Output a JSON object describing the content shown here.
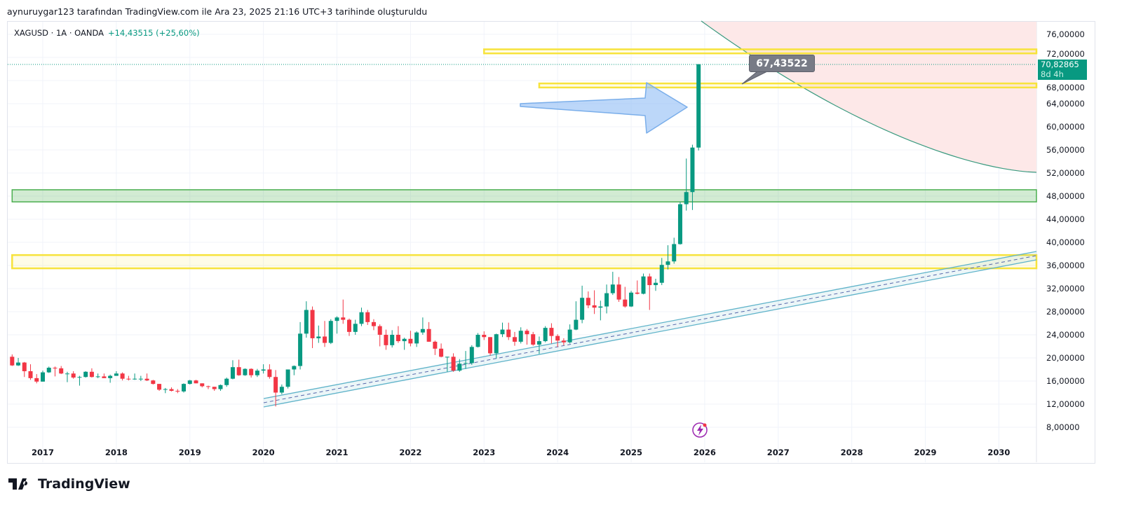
{
  "credit": "aynuruygar123 tarafından TradingView.com ile Ara 23, 2025 21:16 UTC+3 tarihinde oluşturuldu",
  "legend": {
    "symbol": "XAGUSD · 1A · OANDA",
    "change": "+14,43515 (+25,60%)"
  },
  "price_tag": {
    "price": "70,82865",
    "countdown": "8d 4h"
  },
  "callout": "67,43522",
  "logo": "TradingView",
  "colors": {
    "up": "#089981",
    "down": "#f23645",
    "zone_yellow": "#f7e33c",
    "zone_green": "#4caf50",
    "channel": "#5fb3c9",
    "curve": "#3a9a7f",
    "arrow": "#90bdf5",
    "forecast_fill": "#fde8e8"
  },
  "icons": [
    "lightning-icon",
    "tradingview-logo-icon"
  ],
  "chart_data": {
    "type": "candlestick",
    "interval": "monthly",
    "start": "2016-08",
    "ylim": [
      5,
      78
    ],
    "y_ticks": [
      "8,00000",
      "12,00000",
      "16,00000",
      "20,00000",
      "24,00000",
      "28,00000",
      "32,00000",
      "36,00000",
      "40,00000",
      "44,00000",
      "48,00000",
      "52,00000",
      "56,00000",
      "60,00000",
      "64,00000",
      "68,00000",
      "72,00000",
      "76,00000"
    ],
    "x_ticks": [
      "2017",
      "2018",
      "2019",
      "2020",
      "2021",
      "2022",
      "2023",
      "2024",
      "2025",
      "2026",
      "2027",
      "2028",
      "2029",
      "2030"
    ],
    "grid": true,
    "ohlc": [
      [
        20.2,
        20.6,
        18.6,
        18.7
      ],
      [
        18.7,
        20.0,
        18.6,
        19.2
      ],
      [
        19.2,
        19.3,
        16.7,
        17.7
      ],
      [
        17.7,
        18.9,
        16.2,
        16.5
      ],
      [
        16.5,
        17.2,
        15.6,
        15.9
      ],
      [
        15.9,
        17.8,
        15.9,
        17.5
      ],
      [
        17.5,
        18.5,
        17.4,
        18.3
      ],
      [
        18.3,
        18.5,
        16.8,
        18.2
      ],
      [
        18.2,
        18.6,
        17.2,
        17.3
      ],
      [
        17.3,
        17.6,
        15.8,
        17.3
      ],
      [
        17.3,
        17.7,
        16.4,
        16.6
      ],
      [
        16.6,
        16.9,
        15.2,
        16.7
      ],
      [
        16.7,
        17.7,
        16.6,
        17.6
      ],
      [
        17.6,
        18.2,
        16.6,
        16.7
      ],
      [
        16.7,
        17.3,
        16.5,
        16.8
      ],
      [
        16.8,
        17.3,
        16.6,
        16.5
      ],
      [
        16.5,
        17.1,
        15.7,
        16.9
      ],
      [
        16.9,
        17.7,
        16.9,
        17.3
      ],
      [
        17.3,
        17.5,
        16.1,
        16.4
      ],
      [
        16.4,
        16.9,
        16.1,
        16.3
      ],
      [
        16.3,
        17.3,
        16.2,
        16.4
      ],
      [
        16.4,
        16.9,
        16.0,
        16.4
      ],
      [
        16.4,
        17.3,
        16.0,
        16.1
      ],
      [
        16.1,
        16.2,
        15.4,
        15.5
      ],
      [
        15.5,
        15.5,
        14.3,
        14.5
      ],
      [
        14.5,
        14.8,
        13.9,
        14.6
      ],
      [
        14.6,
        14.9,
        14.2,
        14.3
      ],
      [
        14.3,
        14.6,
        13.9,
        14.2
      ],
      [
        14.2,
        15.6,
        14.0,
        15.5
      ],
      [
        15.5,
        16.2,
        15.4,
        16.1
      ],
      [
        16.1,
        16.2,
        15.6,
        15.6
      ],
      [
        15.6,
        15.6,
        14.9,
        15.1
      ],
      [
        15.1,
        15.2,
        14.6,
        15.0
      ],
      [
        15.0,
        15.0,
        14.3,
        14.6
      ],
      [
        14.6,
        15.4,
        14.3,
        15.3
      ],
      [
        15.3,
        16.6,
        15.0,
        16.4
      ],
      [
        16.4,
        19.6,
        16.3,
        18.4
      ],
      [
        18.4,
        19.7,
        16.9,
        17.0
      ],
      [
        17.0,
        18.2,
        16.9,
        18.1
      ],
      [
        18.1,
        18.2,
        16.6,
        17.0
      ],
      [
        17.0,
        18.1,
        16.7,
        17.8
      ],
      [
        17.8,
        18.9,
        17.3,
        18.0
      ],
      [
        18.0,
        18.9,
        16.4,
        16.7
      ],
      [
        16.7,
        17.9,
        11.6,
        14.0
      ],
      [
        14.0,
        15.4,
        13.7,
        15.0
      ],
      [
        15.0,
        18.0,
        14.7,
        18.0
      ],
      [
        18.0,
        18.7,
        17.0,
        18.6
      ],
      [
        18.6,
        26.2,
        18.0,
        24.2
      ],
      [
        24.2,
        29.8,
        23.5,
        28.3
      ],
      [
        28.3,
        28.9,
        21.7,
        23.4
      ],
      [
        23.4,
        25.6,
        22.6,
        23.7
      ],
      [
        23.7,
        26.4,
        21.9,
        22.6
      ],
      [
        22.6,
        26.7,
        22.4,
        26.4
      ],
      [
        26.4,
        27.2,
        24.2,
        27.0
      ],
      [
        27.0,
        30.1,
        25.9,
        26.6
      ],
      [
        26.6,
        26.8,
        23.8,
        24.5
      ],
      [
        24.5,
        26.6,
        24.0,
        25.9
      ],
      [
        25.9,
        28.7,
        25.5,
        27.9
      ],
      [
        27.9,
        28.3,
        25.7,
        26.2
      ],
      [
        26.2,
        26.7,
        24.8,
        25.5
      ],
      [
        25.5,
        25.8,
        22.0,
        24.0
      ],
      [
        24.0,
        24.9,
        21.4,
        22.2
      ],
      [
        22.2,
        24.8,
        21.8,
        24.0
      ],
      [
        24.0,
        25.5,
        22.6,
        22.9
      ],
      [
        22.9,
        23.5,
        21.4,
        23.3
      ],
      [
        23.3,
        24.7,
        22.0,
        22.5
      ],
      [
        22.5,
        24.6,
        21.9,
        24.4
      ],
      [
        24.4,
        27.0,
        24.0,
        25.0
      ],
      [
        25.0,
        26.2,
        22.8,
        22.8
      ],
      [
        22.8,
        23.0,
        20.5,
        21.6
      ],
      [
        21.6,
        22.5,
        20.1,
        20.2
      ],
      [
        20.2,
        20.2,
        17.6,
        20.2
      ],
      [
        20.2,
        20.8,
        17.6,
        17.8
      ],
      [
        17.8,
        19.8,
        17.6,
        19.0
      ],
      [
        19.0,
        21.2,
        18.1,
        19.1
      ],
      [
        19.1,
        22.2,
        18.8,
        21.9
      ],
      [
        21.9,
        24.3,
        21.8,
        24.0
      ],
      [
        24.0,
        24.6,
        23.1,
        23.6
      ],
      [
        23.6,
        23.6,
        20.4,
        20.8
      ],
      [
        20.8,
        24.2,
        19.9,
        24.1
      ],
      [
        24.1,
        26.1,
        23.6,
        24.9
      ],
      [
        24.9,
        26.1,
        23.1,
        23.6
      ],
      [
        23.6,
        24.5,
        22.1,
        22.8
      ],
      [
        22.8,
        25.3,
        22.5,
        24.7
      ],
      [
        24.7,
        25.0,
        22.3,
        24.1
      ],
      [
        24.1,
        24.5,
        22.1,
        22.3
      ],
      [
        22.3,
        23.7,
        20.7,
        22.9
      ],
      [
        22.9,
        25.5,
        22.7,
        25.2
      ],
      [
        25.2,
        26.0,
        22.5,
        23.8
      ],
      [
        23.8,
        24.1,
        21.9,
        23.0
      ],
      [
        23.0,
        23.4,
        22.2,
        22.7
      ],
      [
        22.7,
        25.8,
        22.5,
        24.9
      ],
      [
        24.9,
        29.8,
        24.8,
        26.6
      ],
      [
        26.6,
        32.5,
        26.0,
        30.4
      ],
      [
        30.4,
        31.5,
        28.6,
        29.1
      ],
      [
        29.1,
        31.7,
        27.6,
        28.7
      ],
      [
        28.7,
        29.9,
        26.5,
        28.9
      ],
      [
        28.9,
        32.7,
        27.7,
        31.2
      ],
      [
        31.2,
        34.9,
        30.9,
        32.7
      ],
      [
        32.7,
        34.0,
        29.7,
        30.1
      ],
      [
        30.1,
        32.3,
        28.7,
        28.9
      ],
      [
        28.9,
        31.6,
        28.8,
        31.3
      ],
      [
        31.3,
        33.4,
        31.0,
        31.1
      ],
      [
        31.1,
        34.6,
        31.0,
        34.1
      ],
      [
        34.1,
        34.6,
        28.3,
        32.6
      ],
      [
        32.6,
        33.7,
        31.6,
        33.0
      ],
      [
        33.0,
        37.3,
        32.6,
        36.1
      ],
      [
        36.1,
        39.5,
        35.3,
        36.7
      ],
      [
        36.7,
        40.8,
        36.3,
        39.7
      ],
      [
        39.7,
        47.0,
        39.6,
        46.6
      ],
      [
        46.6,
        54.5,
        45.5,
        48.7
      ],
      [
        48.7,
        56.9,
        45.6,
        56.4
      ],
      [
        56.4,
        70.8,
        55.9,
        70.83
      ]
    ],
    "zones": [
      {
        "color": "yellow",
        "from": 72.7,
        "to": 73.4,
        "start": "2023-01"
      },
      {
        "color": "yellow",
        "from": 66.8,
        "to": 67.5,
        "start": "2023-10"
      },
      {
        "color": "green",
        "from": 47.0,
        "to": 49.1,
        "start": "2016-08"
      },
      {
        "color": "yellow",
        "from": 35.5,
        "to": 37.8,
        "start": "2016-08"
      }
    ]
  }
}
